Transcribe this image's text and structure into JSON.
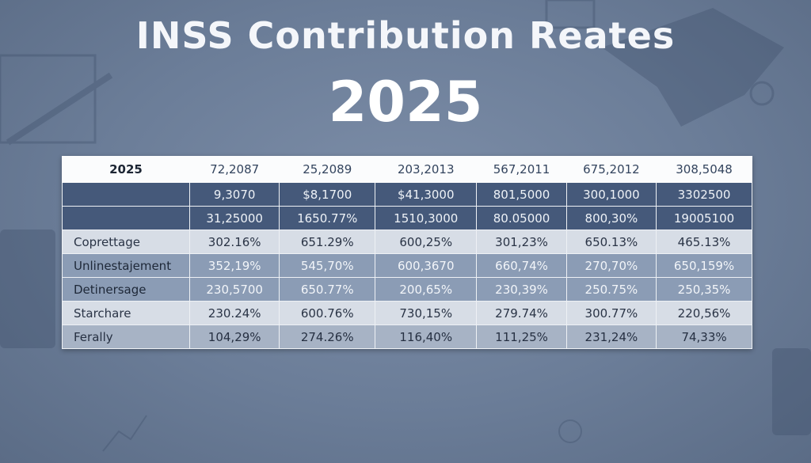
{
  "title": "INSS Contribution Reates",
  "year": "2025",
  "table": {
    "header": [
      "2025",
      "72,2087",
      "25,2089",
      "203,2013",
      "567,2011",
      "675,2012",
      "308,5048"
    ],
    "rows": [
      {
        "label": "",
        "style": "dark",
        "cells": [
          "9,3070",
          "$8,1700",
          "$41,3000",
          "801,5000",
          "300,1000",
          "3302500"
        ]
      },
      {
        "label": "",
        "style": "dark",
        "cells": [
          "31,25000",
          "1650.77%",
          "1510,3000",
          "80.05000",
          "800,30%",
          "19005100"
        ]
      },
      {
        "label": "Coprettage",
        "style": "light",
        "cells": [
          "302.16%",
          "651.29%",
          "600,25%",
          "301,23%",
          "650.13%",
          "465.13%"
        ]
      },
      {
        "label": "Unlinestajement",
        "style": "mid",
        "cells": [
          "352,19%",
          "545,70%",
          "600,3670",
          "660,74%",
          "270,70%",
          "650,159%"
        ]
      },
      {
        "label": "Detinersage",
        "style": "mid",
        "cells": [
          "230,5700",
          "650.77%",
          "200,65%",
          "230,39%",
          "250.75%",
          "250,35%"
        ]
      },
      {
        "label": "Starchare",
        "style": "light",
        "cells": [
          "230.24%",
          "600.76%",
          "730,15%",
          "279.74%",
          "300.77%",
          "220,56%"
        ]
      },
      {
        "label": "Ferally",
        "style": "soft",
        "cells": [
          "104,29%",
          "274.26%",
          "116,40%",
          "111,25%",
          "231,24%",
          "74,33%"
        ]
      }
    ]
  }
}
